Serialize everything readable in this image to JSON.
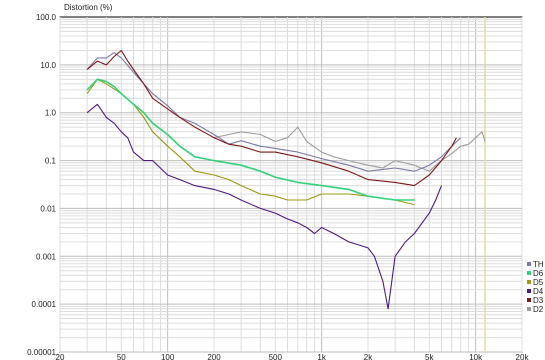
{
  "chart_data": {
    "type": "line",
    "title": "Distortion (%)",
    "x_scale": "log",
    "y_scale": "log",
    "xlim": [
      20,
      20000
    ],
    "ylim": [
      1e-05,
      100
    ],
    "grid": true,
    "legend_placement": "bottom-right",
    "x_ticks": [
      "20",
      "50",
      "100",
      "200",
      "500",
      "1k",
      "2k",
      "5k",
      "10k",
      "20k"
    ],
    "x_tick_values": [
      20,
      50,
      100,
      200,
      500,
      1000,
      2000,
      5000,
      10000,
      20000
    ],
    "y_ticks": [
      "100.0",
      "10.0",
      "1.0",
      "0.1",
      "0.01",
      "0.001",
      "0.0001",
      "0.00001"
    ],
    "y_tick_values": [
      100,
      10,
      1,
      0.1,
      0.01,
      0.001,
      0.0001,
      1e-05
    ],
    "marker_line_x": 11500,
    "series": [
      {
        "name": "TH",
        "color": "#7a7aa6",
        "x": [
          30,
          35,
          40,
          45,
          50,
          60,
          70,
          80,
          100,
          120,
          150,
          200,
          250,
          300,
          400,
          500,
          700,
          1000,
          1500,
          2000,
          3000,
          4000,
          5000,
          6000,
          7000,
          8000
        ],
        "y": [
          8,
          14,
          14,
          18,
          14,
          7,
          4,
          2.5,
          1.4,
          0.8,
          0.6,
          0.35,
          0.22,
          0.26,
          0.2,
          0.18,
          0.15,
          0.11,
          0.08,
          0.06,
          0.07,
          0.06,
          0.08,
          0.12,
          0.2,
          0.3
        ]
      },
      {
        "name": "D6",
        "color": "#33d27a",
        "x": [
          30,
          35,
          40,
          45,
          50,
          60,
          70,
          80,
          100,
          120,
          150,
          200,
          300,
          400,
          500,
          700,
          1000,
          1500,
          2000,
          3000,
          4000
        ],
        "y": [
          3,
          5,
          4.5,
          3.5,
          2.5,
          1.5,
          1.0,
          0.6,
          0.35,
          0.2,
          0.12,
          0.1,
          0.08,
          0.06,
          0.045,
          0.035,
          0.03,
          0.025,
          0.018,
          0.015,
          0.015
        ]
      },
      {
        "name": "D5",
        "color": "#9a9a12",
        "x": [
          30,
          35,
          40,
          50,
          60,
          70,
          80,
          100,
          120,
          150,
          200,
          250,
          300,
          400,
          500,
          600,
          800,
          1000,
          1500,
          2000,
          3000,
          4000
        ],
        "y": [
          2.5,
          5,
          4,
          2.5,
          1.5,
          0.8,
          0.4,
          0.2,
          0.12,
          0.06,
          0.05,
          0.04,
          0.03,
          0.02,
          0.018,
          0.015,
          0.015,
          0.02,
          0.02,
          0.018,
          0.015,
          0.012
        ]
      },
      {
        "name": "D4",
        "color": "#4e1a84",
        "x": [
          30,
          35,
          40,
          45,
          50,
          55,
          60,
          70,
          80,
          100,
          120,
          150,
          200,
          250,
          300,
          400,
          500,
          600,
          700,
          800,
          900,
          1000,
          1200,
          1500,
          2000,
          2200,
          2500,
          2700,
          3000,
          3500,
          4000,
          4500,
          5000,
          5500,
          6000
        ],
        "y": [
          1.0,
          1.5,
          0.8,
          0.6,
          0.4,
          0.3,
          0.15,
          0.1,
          0.1,
          0.05,
          0.04,
          0.03,
          0.025,
          0.02,
          0.015,
          0.01,
          0.008,
          0.006,
          0.005,
          0.004,
          0.003,
          0.004,
          0.003,
          0.002,
          0.0015,
          0.001,
          0.0003,
          8e-05,
          0.001,
          0.002,
          0.003,
          0.005,
          0.008,
          0.015,
          0.03
        ]
      },
      {
        "name": "D3",
        "color": "#7c1818",
        "x": [
          30,
          35,
          40,
          45,
          50,
          55,
          60,
          70,
          80,
          100,
          120,
          150,
          200,
          250,
          300,
          400,
          500,
          700,
          1000,
          1500,
          2000,
          3000,
          4000,
          5000,
          6000,
          7000,
          7500
        ],
        "y": [
          8,
          12,
          10,
          15,
          20,
          12,
          8,
          4,
          2.0,
          1.2,
          0.8,
          0.5,
          0.3,
          0.22,
          0.2,
          0.15,
          0.15,
          0.12,
          0.09,
          0.06,
          0.04,
          0.035,
          0.03,
          0.05,
          0.1,
          0.2,
          0.3
        ]
      },
      {
        "name": "D2",
        "color": "#9d9d9d",
        "x": [
          200,
          250,
          300,
          400,
          500,
          600,
          700,
          800,
          1000,
          1200,
          1500,
          2000,
          2500,
          3000,
          4000,
          5000,
          6000,
          7000,
          8000,
          9000,
          10000,
          11000,
          11500
        ],
        "y": [
          0.3,
          0.35,
          0.4,
          0.35,
          0.25,
          0.3,
          0.5,
          0.25,
          0.15,
          0.12,
          0.1,
          0.08,
          0.07,
          0.1,
          0.08,
          0.06,
          0.1,
          0.14,
          0.2,
          0.22,
          0.3,
          0.4,
          0.25
        ]
      }
    ]
  }
}
